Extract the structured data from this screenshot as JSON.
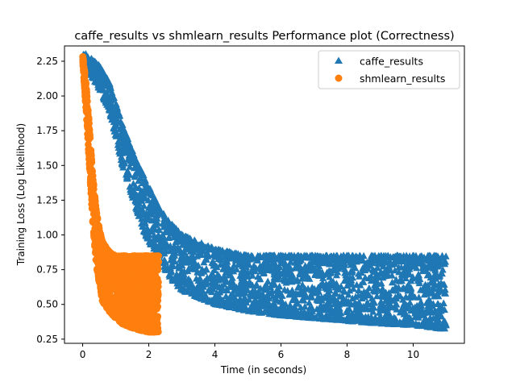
{
  "chart_data": {
    "type": "scatter",
    "title": "caffe_results vs shmlearn_results Performance plot (Correctness)",
    "xlabel": "Time (in seconds)",
    "ylabel": "Training Loss (Log Likelihood)",
    "xlim": [
      -0.55,
      11.55
    ],
    "ylim": [
      0.22,
      2.36
    ],
    "xticks": [
      0,
      2,
      4,
      6,
      8,
      10
    ],
    "yticks": [
      0.25,
      0.5,
      0.75,
      1.0,
      1.25,
      1.5,
      1.75,
      2.0,
      2.25
    ],
    "xtick_labels": [
      "0",
      "2",
      "4",
      "6",
      "8",
      "10"
    ],
    "ytick_labels": [
      "0.25",
      "0.50",
      "0.75",
      "1.00",
      "1.25",
      "1.50",
      "1.75",
      "2.00",
      "2.25"
    ],
    "grid": false,
    "legend_position": "top-right",
    "series": [
      {
        "name": "caffe_results",
        "marker": "triangle",
        "color": "#1f77b4",
        "x_range": [
          0.0,
          11.0
        ],
        "envelope": {
          "x": [
            0.0,
            0.5,
            0.8,
            1.0,
            1.2,
            1.4,
            1.6,
            1.8,
            2.0,
            2.3,
            2.6,
            3.0,
            3.5,
            4.0,
            5.0,
            6.0,
            7.0,
            8.0,
            9.0,
            10.0,
            11.0
          ],
          "upper": [
            2.32,
            2.22,
            2.1,
            1.95,
            1.8,
            1.67,
            1.55,
            1.45,
            1.35,
            1.2,
            1.1,
            1.0,
            0.95,
            0.9,
            0.85,
            0.85,
            0.85,
            0.85,
            0.85,
            0.85,
            0.85
          ],
          "lower": [
            2.25,
            2.05,
            1.9,
            1.7,
            1.5,
            1.35,
            1.2,
            1.05,
            0.95,
            0.85,
            0.7,
            0.6,
            0.55,
            0.5,
            0.45,
            0.42,
            0.4,
            0.38,
            0.36,
            0.35,
            0.32
          ]
        }
      },
      {
        "name": "shmlearn_results",
        "marker": "circle",
        "color": "#ff7f0e",
        "x_range": [
          0.0,
          2.3
        ],
        "envelope": {
          "x": [
            0.0,
            0.1,
            0.2,
            0.3,
            0.4,
            0.5,
            0.6,
            0.8,
            1.0,
            1.2,
            1.5,
            1.8,
            2.0,
            2.3
          ],
          "upper": [
            2.3,
            2.1,
            1.8,
            1.45,
            1.2,
            1.05,
            0.95,
            0.88,
            0.85,
            0.85,
            0.85,
            0.85,
            0.85,
            0.85
          ],
          "lower": [
            2.25,
            1.9,
            1.5,
            1.1,
            0.8,
            0.65,
            0.52,
            0.45,
            0.4,
            0.36,
            0.33,
            0.31,
            0.3,
            0.3
          ]
        }
      }
    ]
  }
}
